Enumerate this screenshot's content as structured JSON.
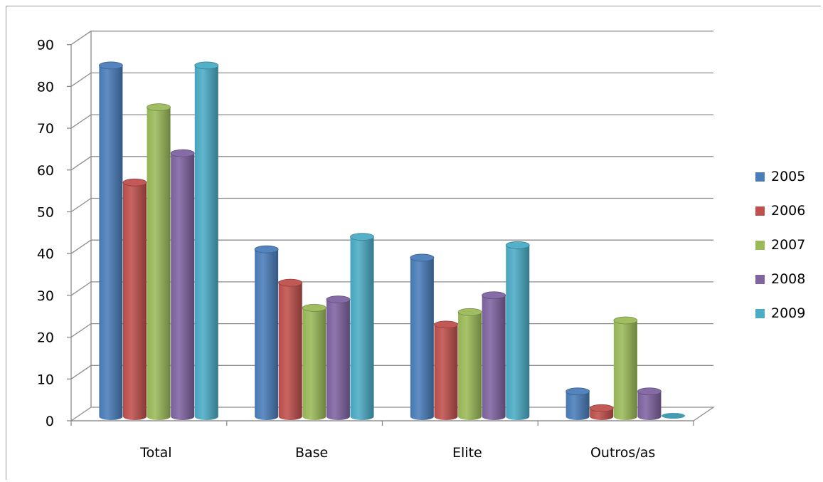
{
  "chart_data": {
    "type": "bar",
    "style": "3d-cylinder",
    "categories": [
      "Total",
      "Base",
      "Elite",
      "Outros/as"
    ],
    "series": [
      {
        "name": "2005",
        "color": "#4a7ebb",
        "values": [
          84,
          40,
          38,
          6
        ]
      },
      {
        "name": "2006",
        "color": "#c0504d",
        "values": [
          56,
          32,
          22,
          2
        ]
      },
      {
        "name": "2007",
        "color": "#9bbb59",
        "values": [
          74,
          26,
          25,
          23
        ]
      },
      {
        "name": "2008",
        "color": "#8064a2",
        "values": [
          63,
          28,
          29,
          6
        ]
      },
      {
        "name": "2009",
        "color": "#4bacc6",
        "values": [
          84,
          43,
          41,
          0
        ]
      }
    ],
    "ylim": [
      0,
      90
    ],
    "yticks": [
      "0",
      "10",
      "20",
      "30",
      "40",
      "50",
      "60",
      "70",
      "80",
      "90"
    ],
    "grid": true,
    "legend_position": "right"
  }
}
